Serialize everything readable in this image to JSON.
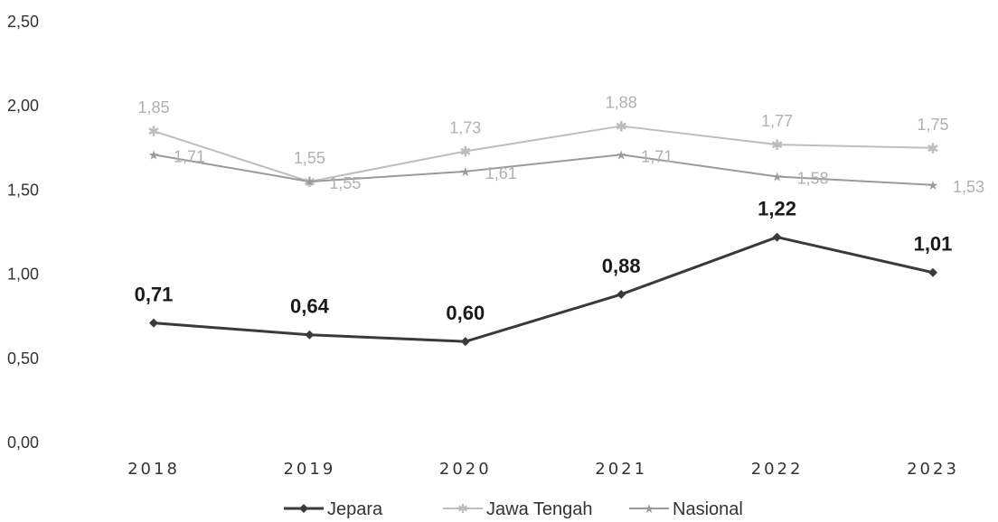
{
  "chart_data": {
    "type": "line",
    "categories": [
      "2018",
      "2019",
      "2020",
      "2021",
      "2022",
      "2023"
    ],
    "series": [
      {
        "name": "Jepara",
        "values": [
          0.71,
          0.64,
          0.6,
          0.88,
          1.22,
          1.01
        ],
        "labels": [
          "0,71",
          "0,64",
          "0,60",
          "0,88",
          "1,22",
          "1,01"
        ],
        "color": "#3a3a3a"
      },
      {
        "name": "Jawa Tengah",
        "values": [
          1.85,
          1.55,
          1.73,
          1.88,
          1.77,
          1.75
        ],
        "labels": [
          "1,85",
          "1,55",
          "1,73",
          "1,88",
          "1,77",
          "1,75"
        ],
        "color": "#bdbdbd"
      },
      {
        "name": "Nasional",
        "values": [
          1.71,
          1.55,
          1.61,
          1.71,
          1.58,
          1.53
        ],
        "labels": [
          "1,71",
          "1,55",
          "1,61",
          "1,71",
          "1,58",
          "1,53"
        ],
        "color": "#9a9a9a"
      }
    ],
    "yticks": [
      "0,00",
      "0,50",
      "1,00",
      "1,50",
      "2,00",
      "2,50"
    ],
    "ylim": [
      0,
      2.5
    ],
    "grid": false,
    "legend_position": "bottom"
  }
}
